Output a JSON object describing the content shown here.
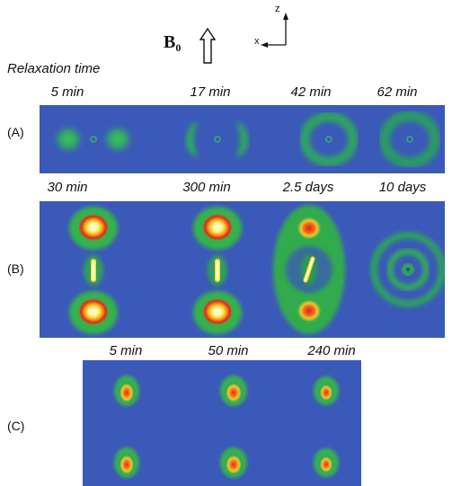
{
  "header": {
    "field_symbol": "B",
    "field_subscript": "0",
    "axis_z": "z",
    "axis_x": "x"
  },
  "relaxation_label": "Relaxation time",
  "rows": [
    {
      "label": "(A)",
      "times": [
        "5 min",
        "17 min",
        "42 min",
        "62 min"
      ]
    },
    {
      "label": "(B)",
      "times": [
        "30 min",
        "300 min",
        "2.5 days",
        "10 days"
      ]
    },
    {
      "label": "(C)",
      "times": [
        "5 min",
        "50 min",
        "240 min"
      ]
    }
  ],
  "colors": {
    "background": "#3b59b8",
    "green": "#34b34a",
    "yellow": "#f5e028",
    "orange": "#f47c1c",
    "red": "#e8261a",
    "white_core": "#fffbe6"
  }
}
